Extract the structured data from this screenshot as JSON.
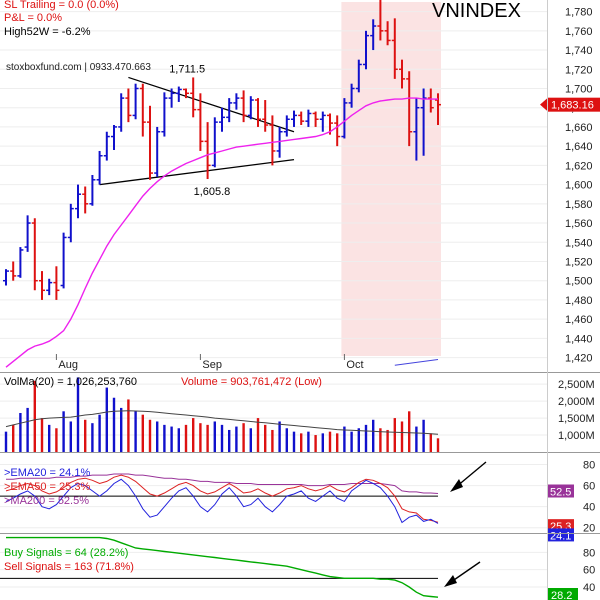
{
  "header": {
    "sl_trailing": "SL Trailing = 0.0 (0.0%)",
    "pnl": "P&L = 0.0%",
    "high52w": "High52W = -6.2%",
    "source": "stoxboxfund.com | 0933.470.663",
    "ticker": "VNINDEX"
  },
  "colors": {
    "up": "#1010cc",
    "down": "#dd1111",
    "ma": "#ee22ee",
    "highlight": "#fbe3e3",
    "price_tag": "#dd1111",
    "ema20": "#2222dd",
    "ema50": "#dd2222",
    "ma200": "#993399",
    "buy": "#00aa00",
    "sell": "#dd1111",
    "volma": "#444444",
    "tag_ma200": "#993399",
    "tag_ema50": "#dd2222",
    "tag_ema20": "#2222dd",
    "tag_bottom": "#00aa00"
  },
  "chart_data": [
    {
      "type": "candlestick",
      "title": "VNINDEX",
      "x_labels": [
        "Aug",
        "Sep",
        "Oct"
      ],
      "y_ticks": [
        1420,
        1440,
        1460,
        1480,
        1500,
        1520,
        1540,
        1560,
        1580,
        1600,
        1620,
        1640,
        1660,
        1680,
        1700,
        1720,
        1740,
        1760,
        1780
      ],
      "ylim": [
        1405,
        1790
      ],
      "last_price_label": "1,683.16",
      "annotations": {
        "peak": "1,711.5",
        "trough": "1,605.8"
      },
      "trend_lines": {
        "upper": [
          [
            17,
            1711.5
          ],
          [
            40,
            1655
          ]
        ],
        "lower": [
          [
            13,
            1600
          ],
          [
            40,
            1626
          ]
        ]
      },
      "highlight_from": 47,
      "ohlc": [
        [
          1500,
          1512,
          1495,
          1510
        ],
        [
          1510,
          1520,
          1500,
          1505
        ],
        [
          1505,
          1535,
          1503,
          1532
        ],
        [
          1535,
          1568,
          1530,
          1560
        ],
        [
          1560,
          1565,
          1490,
          1500
        ],
        [
          1500,
          1510,
          1480,
          1490
        ],
        [
          1490,
          1502,
          1485,
          1498
        ],
        [
          1498,
          1515,
          1480,
          1490
        ],
        [
          1495,
          1550,
          1492,
          1545
        ],
        [
          1545,
          1580,
          1540,
          1575
        ],
        [
          1575,
          1600,
          1565,
          1590
        ],
        [
          1590,
          1598,
          1570,
          1580
        ],
        [
          1580,
          1610,
          1578,
          1605
        ],
        [
          1605,
          1635,
          1600,
          1630
        ],
        [
          1630,
          1655,
          1625,
          1650
        ],
        [
          1650,
          1662,
          1636,
          1660
        ],
        [
          1660,
          1695,
          1655,
          1690
        ],
        [
          1690,
          1700,
          1665,
          1672
        ],
        [
          1672,
          1705,
          1668,
          1700
        ],
        [
          1700,
          1705,
          1650,
          1665
        ],
        [
          1665,
          1682,
          1605,
          1612
        ],
        [
          1612,
          1660,
          1608,
          1655
        ],
        [
          1655,
          1696,
          1650,
          1690
        ],
        [
          1690,
          1700,
          1680,
          1695
        ],
        [
          1695,
          1702,
          1686,
          1699
        ],
        [
          1699,
          1700,
          1690,
          1695
        ],
        [
          1695,
          1711.5,
          1670,
          1678
        ],
        [
          1678,
          1695,
          1635,
          1645
        ],
        [
          1645,
          1665,
          1605.8,
          1620
        ],
        [
          1620,
          1670,
          1618,
          1665
        ],
        [
          1665,
          1680,
          1655,
          1670
        ],
        [
          1670,
          1690,
          1665,
          1685
        ],
        [
          1685,
          1695,
          1678,
          1690
        ],
        [
          1690,
          1698,
          1665,
          1672
        ],
        [
          1672,
          1692,
          1668,
          1688
        ],
        [
          1688,
          1690,
          1660,
          1668
        ],
        [
          1668,
          1688,
          1655,
          1662
        ],
        [
          1662,
          1672,
          1620,
          1635
        ],
        [
          1635,
          1660,
          1628,
          1655
        ],
        [
          1655,
          1672,
          1650,
          1668
        ],
        [
          1668,
          1677,
          1660,
          1672
        ],
        [
          1672,
          1676,
          1662,
          1666
        ],
        [
          1666,
          1678,
          1660,
          1674
        ],
        [
          1674,
          1676,
          1660,
          1668
        ],
        [
          1668,
          1676,
          1655,
          1672
        ],
        [
          1672,
          1674,
          1652,
          1664
        ],
        [
          1664,
          1672,
          1640,
          1650
        ],
        [
          1650,
          1690,
          1648,
          1685
        ],
        [
          1685,
          1705,
          1680,
          1700
        ],
        [
          1700,
          1730,
          1696,
          1725
        ],
        [
          1725,
          1760,
          1720,
          1755
        ],
        [
          1755,
          1772,
          1740,
          1765
        ],
        [
          1765,
          1795,
          1750,
          1760
        ],
        [
          1760,
          1770,
          1745,
          1750
        ],
        [
          1750,
          1773,
          1710,
          1720
        ],
        [
          1720,
          1730,
          1700,
          1710
        ],
        [
          1710,
          1718,
          1640,
          1655
        ],
        [
          1655,
          1690,
          1625,
          1680
        ],
        [
          1680,
          1700,
          1630,
          1690
        ],
        [
          1690,
          1700,
          1675,
          1680
        ],
        [
          1688,
          1695,
          1662,
          1683.16
        ]
      ],
      "ma": [
        1410,
        1416,
        1422,
        1428,
        1432,
        1434,
        1437,
        1442,
        1448,
        1460,
        1475,
        1492,
        1508,
        1522,
        1536,
        1548,
        1558,
        1568,
        1578,
        1588,
        1596,
        1603,
        1609,
        1614,
        1618,
        1622,
        1625,
        1628,
        1631,
        1633,
        1635,
        1637,
        1639,
        1640,
        1641,
        1642,
        1643,
        1644,
        1645,
        1646,
        1647,
        1648,
        1649,
        1650,
        1652,
        1655,
        1660,
        1666,
        1672,
        1677,
        1682,
        1685,
        1687,
        1688,
        1689,
        1689,
        1690,
        1690,
        1689,
        1689,
        1689
      ]
    },
    {
      "type": "bar",
      "title": "Volume",
      "labels": {
        "volma": "VolMa(20) = 1,026,253,760",
        "volume": "Volume = 903,761,472 (Low)"
      },
      "y_ticks": [
        "2,500M",
        "2,000M",
        "1,500M",
        "1,000M"
      ],
      "y_tick_values": [
        2500,
        2000,
        1500,
        1000
      ],
      "ylim": [
        500,
        2800
      ],
      "values": [
        1100,
        1300,
        1650,
        1800,
        2600,
        1500,
        1300,
        1200,
        1700,
        1400,
        2700,
        1450,
        1350,
        1600,
        2400,
        2100,
        1800,
        2050,
        1700,
        1600,
        1450,
        1400,
        1300,
        1250,
        1200,
        1300,
        1500,
        1350,
        1300,
        1400,
        1300,
        1150,
        1250,
        1350,
        1200,
        1500,
        1300,
        1150,
        1400,
        1200,
        1100,
        1050,
        1100,
        1000,
        1050,
        1100,
        1050,
        1250,
        1100,
        1200,
        1300,
        1450,
        1200,
        1150,
        1500,
        1400,
        1700,
        1250,
        1450,
        1050,
        903.761472
      ],
      "ma": [
        1250,
        1300,
        1350,
        1400,
        1450,
        1480,
        1500,
        1510,
        1520,
        1530,
        1560,
        1590,
        1610,
        1640,
        1680,
        1700,
        1710,
        1715,
        1710,
        1700,
        1690,
        1670,
        1650,
        1630,
        1610,
        1590,
        1570,
        1550,
        1530,
        1500,
        1480,
        1460,
        1440,
        1420,
        1400,
        1380,
        1360,
        1340,
        1320,
        1300,
        1280,
        1260,
        1240,
        1220,
        1200,
        1180,
        1160,
        1150,
        1140,
        1130,
        1120,
        1110,
        1100,
        1090,
        1080,
        1075,
        1070,
        1060,
        1050,
        1040,
        1026.25376
      ]
    },
    {
      "type": "line",
      "title": "Breadth",
      "series": [
        {
          "name": ">EMA20 = 24.1%",
          "color": "#2222dd"
        },
        {
          "name": ">EMA50 = 25.3%",
          "color": "#dd2222"
        },
        {
          "name": ">MA200 = 52.5%",
          "color": "#993399"
        }
      ],
      "y_ticks": [
        80,
        60,
        40,
        20
      ],
      "ylim": [
        15,
        90
      ],
      "reference_line": 50,
      "tags": [
        "52.5",
        "25.3",
        "24.1"
      ],
      "ema20": [
        45,
        48,
        52,
        55,
        50,
        40,
        38,
        42,
        50,
        58,
        62,
        60,
        55,
        50,
        55,
        62,
        66,
        60,
        50,
        38,
        30,
        32,
        40,
        48,
        55,
        58,
        50,
        40,
        35,
        42,
        52,
        58,
        50,
        40,
        42,
        48,
        40,
        35,
        42,
        50,
        52,
        55,
        48,
        45,
        50,
        55,
        48,
        45,
        55,
        60,
        65,
        62,
        58,
        50,
        40,
        25,
        30,
        32,
        26,
        28,
        24.1
      ],
      "ema50": [
        55,
        57,
        60,
        62,
        60,
        55,
        52,
        54,
        58,
        63,
        66,
        67,
        65,
        62,
        64,
        68,
        70,
        68,
        64,
        58,
        52,
        50,
        53,
        57,
        61,
        63,
        60,
        55,
        52,
        54,
        58,
        62,
        58,
        53,
        54,
        57,
        53,
        50,
        53,
        57,
        58,
        60,
        57,
        55,
        57,
        60,
        56,
        54,
        58,
        63,
        66,
        65,
        62,
        58,
        50,
        38,
        35,
        34,
        28,
        27,
        25.3
      ],
      "ma200": [
        66,
        66,
        67,
        67,
        67,
        67,
        67,
        68,
        68,
        68,
        69,
        69,
        70,
        70,
        70,
        71,
        71,
        71,
        70,
        70,
        69,
        68,
        67,
        67,
        66,
        66,
        65,
        64,
        64,
        63,
        63,
        63,
        62,
        62,
        62,
        61,
        61,
        61,
        61,
        61,
        61,
        61,
        60,
        60,
        60,
        61,
        61,
        61,
        62,
        62,
        62,
        62,
        62,
        61,
        60,
        55,
        54,
        54,
        53,
        53,
        52.5
      ]
    },
    {
      "type": "area",
      "title": "Signals",
      "series": [
        {
          "name": "Buy Signals = 64 (28.2%)",
          "color": "#00aa00"
        },
        {
          "name": "Sell Signals = 163 (71.8%)",
          "color": "#dd1111"
        }
      ],
      "y_ticks": [
        80,
        60,
        40
      ],
      "ylim": [
        25,
        100
      ],
      "reference_line": 50,
      "tag": "28.2",
      "buy_pct": [
        97,
        97,
        97,
        97,
        97,
        97,
        97,
        97,
        97,
        97,
        97,
        97,
        97,
        97,
        96,
        94,
        91,
        88,
        85,
        84,
        83,
        82,
        81,
        80,
        79,
        78,
        77,
        76,
        75,
        74,
        73,
        72,
        71,
        70,
        69,
        68,
        67,
        66,
        65,
        64,
        62,
        60,
        58,
        56,
        54,
        52,
        51,
        50,
        50,
        50,
        50,
        50,
        49,
        49,
        48,
        45,
        40,
        34,
        30,
        29,
        28.2
      ]
    }
  ]
}
